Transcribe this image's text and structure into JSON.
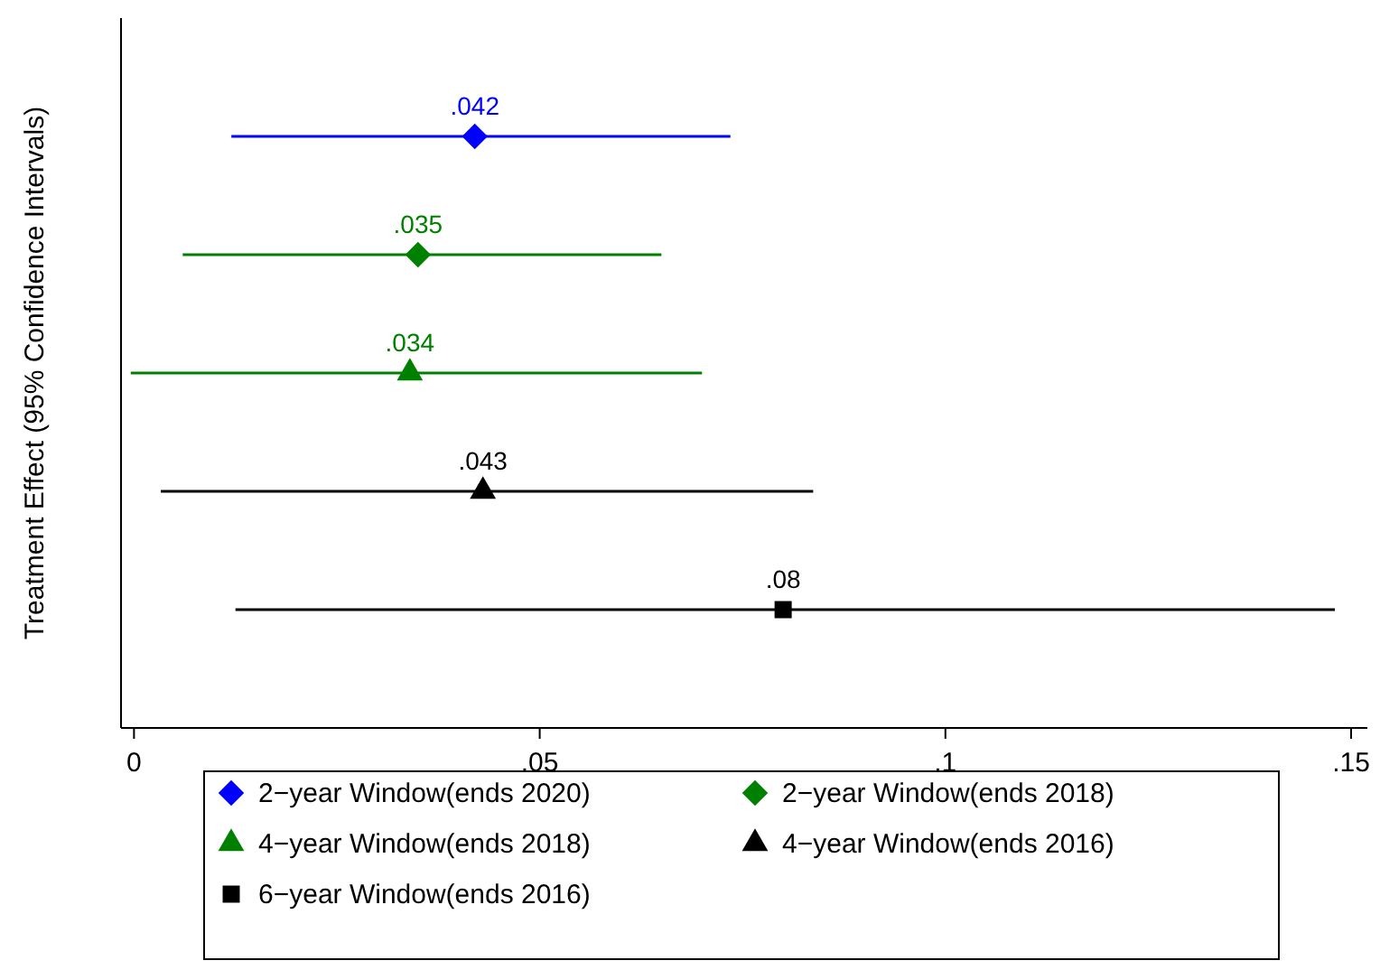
{
  "chart_data": {
    "type": "scatter",
    "orientation": "horizontal",
    "ylabel": "Treatment Effect (95% Confidence Intervals)",
    "categories": [
      null,
      null,
      null,
      null,
      null
    ],
    "xlim": [
      -0.0016,
      0.152
    ],
    "xticks": [
      {
        "value": 0,
        "label": "0"
      },
      {
        "value": 0.05,
        "label": ".05"
      },
      {
        "value": 0.1,
        "label": ".1"
      },
      {
        "value": 0.15,
        "label": ".15"
      }
    ],
    "grid": false,
    "legend": "bottom",
    "series": [
      {
        "name": "2−year Window(ends 2020)",
        "color": "#0000ff",
        "marker": "diamond",
        "values": [
          0.042,
          null,
          null,
          null,
          null
        ],
        "errors": [
          [
            0.012,
            0.0735
          ],
          null,
          null,
          null,
          null
        ],
        "value_labels": [
          ".042",
          null,
          null,
          null,
          null
        ]
      },
      {
        "name": "2−year Window(ends 2018)",
        "color": "#008000",
        "marker": "diamond",
        "values": [
          null,
          0.035,
          null,
          null,
          null
        ],
        "errors": [
          null,
          [
            0.006,
            0.065
          ],
          null,
          null,
          null
        ],
        "value_labels": [
          null,
          ".035",
          null,
          null,
          null
        ]
      },
      {
        "name": "4−year Window(ends 2018)",
        "color": "#008000",
        "marker": "triangle",
        "values": [
          null,
          null,
          0.034,
          null,
          null
        ],
        "errors": [
          null,
          null,
          [
            -0.0004,
            0.07
          ],
          null,
          null
        ],
        "value_labels": [
          null,
          null,
          ".034",
          null,
          null
        ]
      },
      {
        "name": "4−year Window(ends 2016)",
        "color": "#000000",
        "marker": "triangle",
        "values": [
          null,
          null,
          null,
          0.043,
          null
        ],
        "errors": [
          null,
          null,
          null,
          [
            0.0033,
            0.0837
          ],
          null
        ],
        "value_labels": [
          null,
          null,
          null,
          ".043",
          null
        ]
      },
      {
        "name": "6−year Window(ends 2016)",
        "color": "#000000",
        "marker": "square",
        "values": [
          null,
          null,
          null,
          null,
          0.08
        ],
        "errors": [
          null,
          null,
          null,
          null,
          [
            0.0125,
            0.148
          ]
        ],
        "value_labels": [
          null,
          null,
          null,
          null,
          ".08"
        ]
      }
    ]
  }
}
